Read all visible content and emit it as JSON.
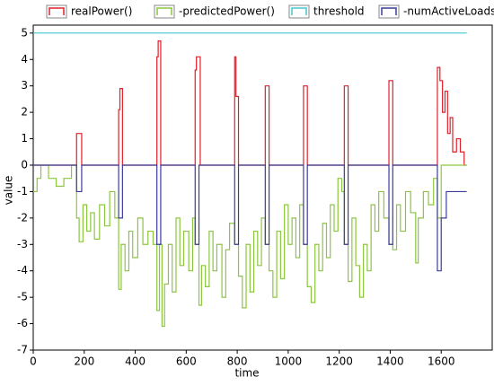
{
  "chart_data": {
    "type": "line",
    "step": true,
    "legend": "top",
    "grid": false,
    "xlabel": "time",
    "ylabel": "value",
    "xlim": [
      0,
      1800
    ],
    "xticks": [
      0,
      200,
      400,
      600,
      800,
      1000,
      1200,
      1400,
      1600
    ],
    "ylim": [
      -7,
      5.3
    ],
    "yticks": [
      -7,
      -6,
      -5,
      -4,
      -3,
      -2,
      -1,
      0,
      1,
      2,
      3,
      4,
      5
    ],
    "series": [
      {
        "name": "realPower()",
        "color": "#e0202a",
        "x": [
          0,
          170,
          190,
          335,
          340,
          350,
          485,
          490,
          500,
          635,
          640,
          655,
          790,
          795,
          805,
          910,
          925,
          1060,
          1075,
          1220,
          1235,
          1395,
          1410,
          1585,
          1595,
          1605,
          1615,
          1625,
          1635,
          1645,
          1660,
          1675,
          1690,
          1700
        ],
        "values": [
          0,
          1.2,
          0,
          2.1,
          2.9,
          0,
          4.1,
          4.7,
          0,
          3.6,
          4.1,
          0,
          4.1,
          2.6,
          0,
          3,
          0,
          3,
          0,
          3,
          0,
          3.2,
          0,
          3.7,
          3.2,
          2,
          2.8,
          1.2,
          1.8,
          0.5,
          1,
          0.5,
          0,
          0
        ]
      },
      {
        "name": "-predictedPower()",
        "color": "#8cc63f",
        "x": [
          0,
          15,
          30,
          60,
          90,
          120,
          150,
          170,
          180,
          195,
          210,
          225,
          240,
          260,
          280,
          300,
          320,
          335,
          345,
          360,
          375,
          390,
          410,
          430,
          450,
          470,
          485,
          495,
          505,
          515,
          530,
          545,
          560,
          575,
          590,
          610,
          625,
          635,
          650,
          660,
          675,
          690,
          705,
          720,
          740,
          755,
          770,
          790,
          805,
          820,
          835,
          850,
          865,
          880,
          895,
          910,
          925,
          940,
          955,
          970,
          985,
          1000,
          1015,
          1030,
          1045,
          1060,
          1075,
          1090,
          1105,
          1120,
          1135,
          1150,
          1165,
          1180,
          1195,
          1210,
          1220,
          1235,
          1250,
          1265,
          1280,
          1295,
          1310,
          1325,
          1340,
          1355,
          1375,
          1395,
          1410,
          1425,
          1440,
          1460,
          1480,
          1500,
          1510,
          1530,
          1550,
          1570,
          1585,
          1600,
          1700
        ],
        "values": [
          -1,
          -0.5,
          0,
          -0.5,
          -0.8,
          -0.5,
          0,
          -2,
          -2.9,
          -1.5,
          -2.5,
          -1.8,
          -2.8,
          -1.5,
          -2.3,
          -1,
          -2,
          -4.7,
          -3,
          -4,
          -2.5,
          -3.5,
          -2,
          -3,
          -2.5,
          -3,
          -5.5,
          -3,
          -6.1,
          -4.5,
          -3,
          -4.8,
          -2,
          -3.8,
          -2.5,
          -4,
          -2,
          -3,
          -5.3,
          -3.8,
          -4.6,
          -2.5,
          -4,
          -3,
          -5,
          -3.2,
          -2.2,
          -3,
          -4.2,
          -5.4,
          -3,
          -4.8,
          -2.5,
          -3.8,
          -2,
          -3,
          -4,
          -5,
          -2.5,
          -4.3,
          -1.5,
          -3,
          -2,
          -3.5,
          -1.5,
          -3,
          -4.6,
          -5.2,
          -3,
          -4,
          -2.2,
          -3.5,
          -1.5,
          -2.5,
          -0.5,
          -1,
          -3,
          -4.4,
          -2,
          -3.8,
          -5,
          -3,
          -4,
          -1.5,
          -2.5,
          -1,
          -2,
          -3,
          -3.2,
          -1.5,
          -2.5,
          -1,
          -1.8,
          -3.7,
          -2,
          -1,
          -1.5,
          -0.5,
          -2,
          0,
          0
        ]
      },
      {
        "name": "threshold",
        "color": "#40c8d0",
        "x": [
          0,
          1700
        ],
        "values": [
          5,
          5
        ]
      },
      {
        "name": "-numActiveLoads()",
        "color": "#3c3c9c",
        "x": [
          0,
          170,
          190,
          335,
          350,
          485,
          500,
          635,
          650,
          790,
          805,
          910,
          925,
          1060,
          1075,
          1220,
          1235,
          1395,
          1410,
          1585,
          1600,
          1620,
          1700
        ],
        "values": [
          0,
          -1,
          0,
          -2,
          0,
          -3,
          0,
          -3,
          0,
          -3,
          0,
          -3,
          0,
          -3,
          0,
          -3,
          0,
          -3,
          0,
          -4,
          -2,
          -1,
          -1
        ]
      }
    ]
  }
}
